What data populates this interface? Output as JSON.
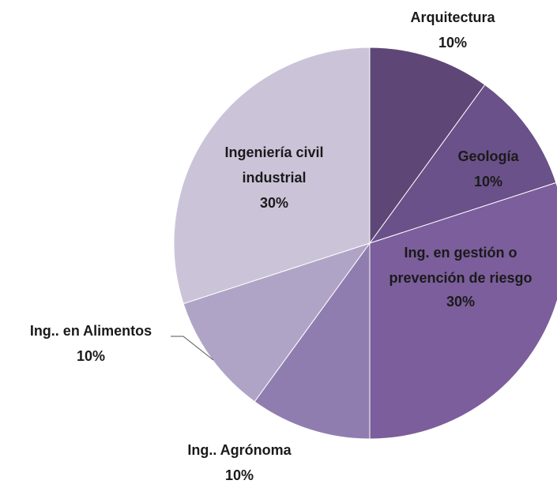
{
  "chart_data": {
    "type": "pie",
    "categories": [
      "Arquitectura",
      "Geología",
      "Ing. en gestión o prevención de riesgo",
      "Ing.. Agrónoma",
      "Ing.. en Alimentos",
      "Ingeniería civil industrial"
    ],
    "values": [
      10,
      10,
      30,
      10,
      10,
      30
    ],
    "value_labels": [
      "10%",
      "10%",
      "30%",
      "10%",
      "10%",
      "30%"
    ],
    "colors": [
      "#5e4776",
      "#6a5189",
      "#7b5e9b",
      "#8f7db0",
      "#b0a4c6",
      "#cbc4d9"
    ]
  }
}
